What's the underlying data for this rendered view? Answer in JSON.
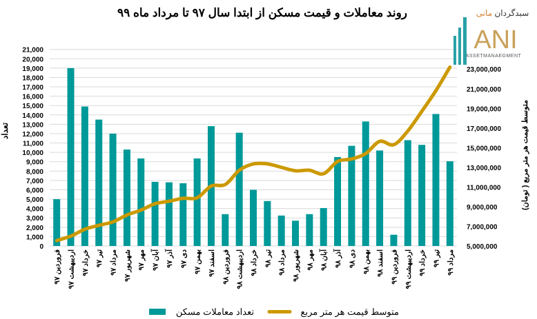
{
  "logo": {
    "persian_name": "سبدگردان مانی",
    "latin_letters": "ANI",
    "tagline": "ASSETMANAEGMENT",
    "colors": {
      "teal": "#2aa1a8",
      "gold": "#c9a15a"
    }
  },
  "chart_data": {
    "type": "bar+line",
    "title": "روند معاملات و قیمت مسکن از ابتدا سال ۹۷ تا مرداد  ماه ۹۹",
    "ylabel": "تعداد",
    "y2label": "متوسط قیمت هر متر مربع ( تومان)",
    "ylim": [
      0,
      21000
    ],
    "yticks": [
      0,
      1000,
      2000,
      3000,
      4000,
      5000,
      6000,
      7000,
      8000,
      9000,
      10000,
      11000,
      12000,
      13000,
      14000,
      15000,
      16000,
      17000,
      18000,
      19000,
      20000,
      21000
    ],
    "y2lim": [
      5000000,
      25000000
    ],
    "y2ticks": [
      5000000,
      7000000,
      9000000,
      11000000,
      13000000,
      15000000,
      17000000,
      19000000,
      21000000,
      23000000
    ],
    "grid": true,
    "legend_position": "bottom",
    "categories": [
      "فروردین ۹۷",
      "اردیبهشت ۹۷",
      "خرداد ۹۷",
      "تیر ۹۷",
      "مرداد ۹۷",
      "شهریور ۹۷",
      "مهر ۹۷",
      "آبان ۹۷",
      "آذر ۹۷",
      "دی ۹۷",
      "بهمن ۹۷",
      "اسفند ۹۷",
      "فروردین ۹۸",
      "اردیبهشت ۹۸",
      "خرداد ۹۸",
      "تیر ۹۸",
      "مرداد ۹۸",
      "شهریور ۹۸",
      "مهر ۹۸",
      "آبان ۹۸",
      "آذر ۹۸",
      "دی ۹۸",
      "بهمن ۹۸",
      "اسفند ۹۸",
      "فروردین ۹۹",
      "اردیبهشت ۹۹",
      "خرداد ۹۹",
      "تیر ۹۹",
      "مرداد ۹۹"
    ],
    "series": [
      {
        "name": "تعداد معاملات مسکن",
        "type": "bar",
        "axis": "left",
        "color": "#009999",
        "values": [
          5000,
          19000,
          14900,
          13500,
          12000,
          10300,
          9350,
          6850,
          6800,
          6700,
          9350,
          12800,
          3400,
          12100,
          6000,
          4800,
          3250,
          2700,
          3400,
          4050,
          9500,
          10700,
          13300,
          10200,
          1200,
          11300,
          10800,
          14100,
          9050
        ]
      },
      {
        "name": "متوسط قیمت هر متر مربع",
        "type": "line",
        "axis": "right",
        "color": "#CC9900",
        "values": [
          5550000,
          6000000,
          6700000,
          7100000,
          7450000,
          8150000,
          8650000,
          9300000,
          9550000,
          9850000,
          9900000,
          11100000,
          11250000,
          12700000,
          13350000,
          13350000,
          13000000,
          12650000,
          12700000,
          12350000,
          13600000,
          13850000,
          14400000,
          15650000,
          15300000,
          16700000,
          18700000,
          20800000,
          23200000
        ]
      }
    ]
  }
}
